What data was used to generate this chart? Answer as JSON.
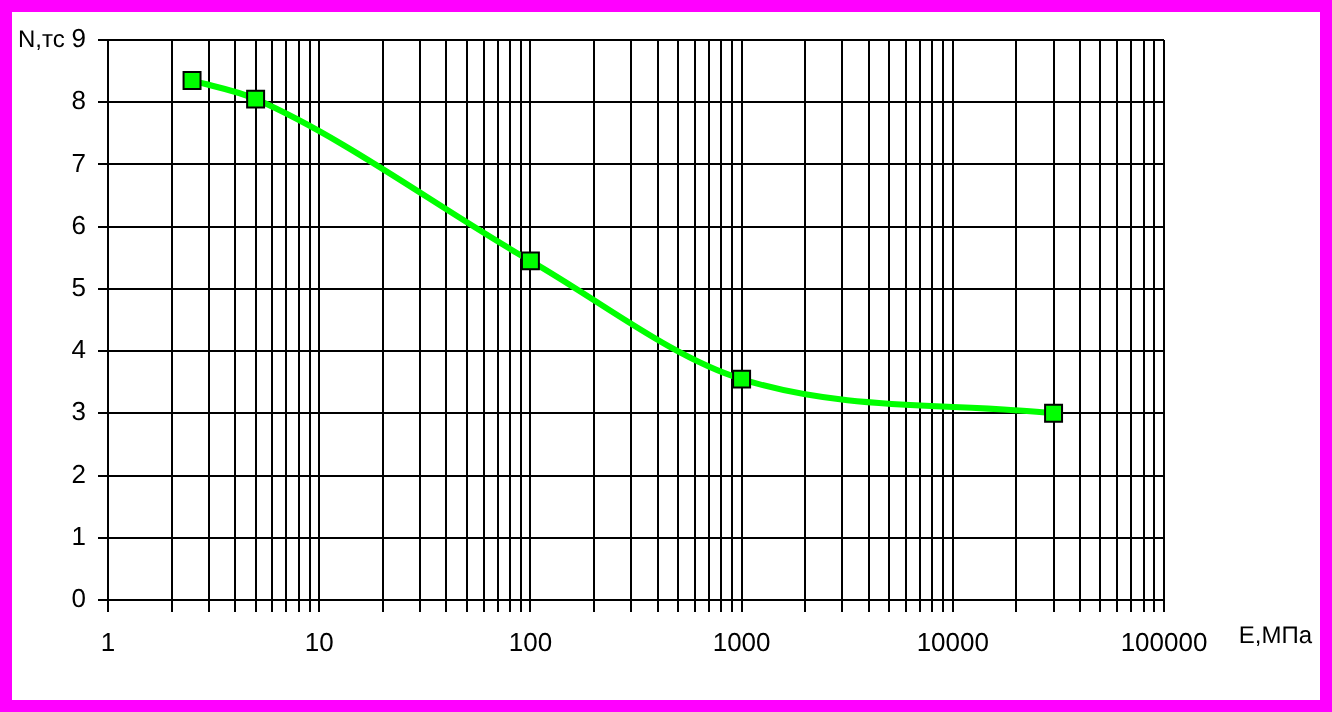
{
  "chart_data": {
    "type": "line",
    "xlabel": "Е,МПа",
    "ylabel": "N,тс",
    "log": "x",
    "grid": true,
    "legend": false,
    "marker": "square",
    "line_style": "solid",
    "x": [
      2.5,
      5,
      100,
      1000,
      30000
    ],
    "series": [
      {
        "color": "#00ff00",
        "values": [
          8.35,
          8.05,
          5.45,
          3.55,
          3.0
        ]
      }
    ],
    "xlim": [
      1,
      100000
    ],
    "xticks": [
      1,
      {
        "value": 2,
        "label": null
      },
      {
        "value": 3,
        "label": null
      },
      {
        "value": 4,
        "label": null
      },
      {
        "value": 5,
        "label": null
      },
      {
        "value": 6,
        "label": null
      },
      {
        "value": 7,
        "label": null
      },
      {
        "value": 8,
        "label": null
      },
      {
        "value": 9,
        "label": null
      },
      10,
      {
        "value": 20,
        "label": null
      },
      {
        "value": 30,
        "label": null
      },
      {
        "value": 40,
        "label": null
      },
      {
        "value": 50,
        "label": null
      },
      {
        "value": 60,
        "label": null
      },
      {
        "value": 70,
        "label": null
      },
      {
        "value": 80,
        "label": null
      },
      {
        "value": 90,
        "label": null
      },
      100,
      {
        "value": 200,
        "label": null
      },
      {
        "value": 300,
        "label": null
      },
      {
        "value": 400,
        "label": null
      },
      {
        "value": 500,
        "label": null
      },
      {
        "value": 600,
        "label": null
      },
      {
        "value": 700,
        "label": null
      },
      {
        "value": 800,
        "label": null
      },
      {
        "value": 900,
        "label": null
      },
      1000,
      {
        "value": 2000,
        "label": null
      },
      {
        "value": 3000,
        "label": null
      },
      {
        "value": 4000,
        "label": null
      },
      {
        "value": 5000,
        "label": null
      },
      {
        "value": 6000,
        "label": null
      },
      {
        "value": 7000,
        "label": null
      },
      {
        "value": 8000,
        "label": null
      },
      {
        "value": 9000,
        "label": null
      },
      10000,
      {
        "value": 20000,
        "label": null
      },
      {
        "value": 30000,
        "label": null
      },
      {
        "value": 40000,
        "label": null
      },
      {
        "value": 50000,
        "label": null
      },
      {
        "value": 60000,
        "label": null
      },
      {
        "value": 70000,
        "label": null
      },
      {
        "value": 80000,
        "label": null
      },
      {
        "value": 90000,
        "label": null
      },
      100000
    ],
    "ylim": [
      0,
      9
    ],
    "yticks": [
      0,
      1,
      2,
      3,
      4,
      5,
      6,
      7,
      8,
      9
    ]
  }
}
